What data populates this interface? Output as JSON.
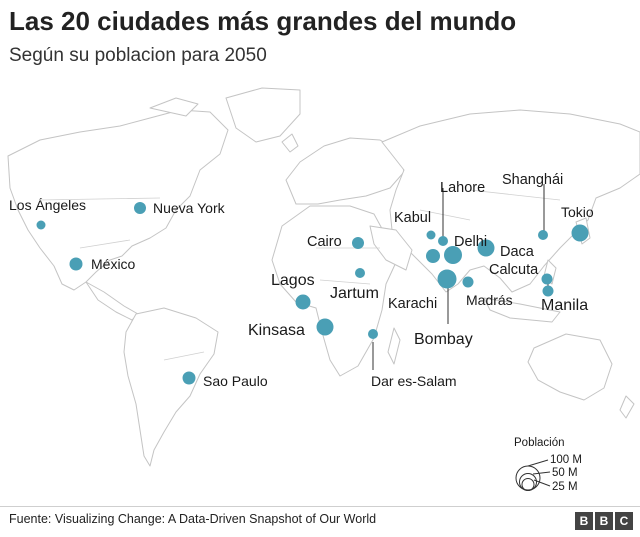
{
  "header": {
    "title": "Las 20 ciudades más grandes del mundo",
    "subtitle": "Según su poblacion para 2050"
  },
  "cities": [
    {
      "id": "los-angeles",
      "label": "Los Ángeles"
    },
    {
      "id": "nueva-york",
      "label": "Nueva York"
    },
    {
      "id": "mexico",
      "label": "México"
    },
    {
      "id": "sao-paulo",
      "label": "Sao Paulo"
    },
    {
      "id": "cairo",
      "label": "Cairo"
    },
    {
      "id": "lagos",
      "label": "Lagos"
    },
    {
      "id": "jartum",
      "label": "Jartum"
    },
    {
      "id": "kinsasa",
      "label": "Kinsasa"
    },
    {
      "id": "dar-es-salam",
      "label": "Dar es-Salam"
    },
    {
      "id": "kabul",
      "label": "Kabul"
    },
    {
      "id": "lahore",
      "label": "Lahore"
    },
    {
      "id": "delhi",
      "label": "Delhi"
    },
    {
      "id": "karachi",
      "label": "Karachi"
    },
    {
      "id": "bombay",
      "label": "Bombay"
    },
    {
      "id": "madras",
      "label": "Madrás"
    },
    {
      "id": "daca",
      "label": "Daca"
    },
    {
      "id": "calcuta",
      "label": "Calcuta"
    },
    {
      "id": "shanghai",
      "label": "Shanghái"
    },
    {
      "id": "tokio",
      "label": "Tokio"
    },
    {
      "id": "manila",
      "label": "Manila"
    }
  ],
  "legend": {
    "title": "Población",
    "items": [
      "100 M",
      "50 M",
      "25 M"
    ]
  },
  "footer": {
    "source": "Fuente:  Visualizing Change: A Data-Driven Snapshot of Our World",
    "logo": [
      "B",
      "B",
      "C"
    ]
  },
  "colors": {
    "city_marker": "#4a9fb5",
    "land": "#ffffff",
    "border": "#bdbdbd"
  }
}
